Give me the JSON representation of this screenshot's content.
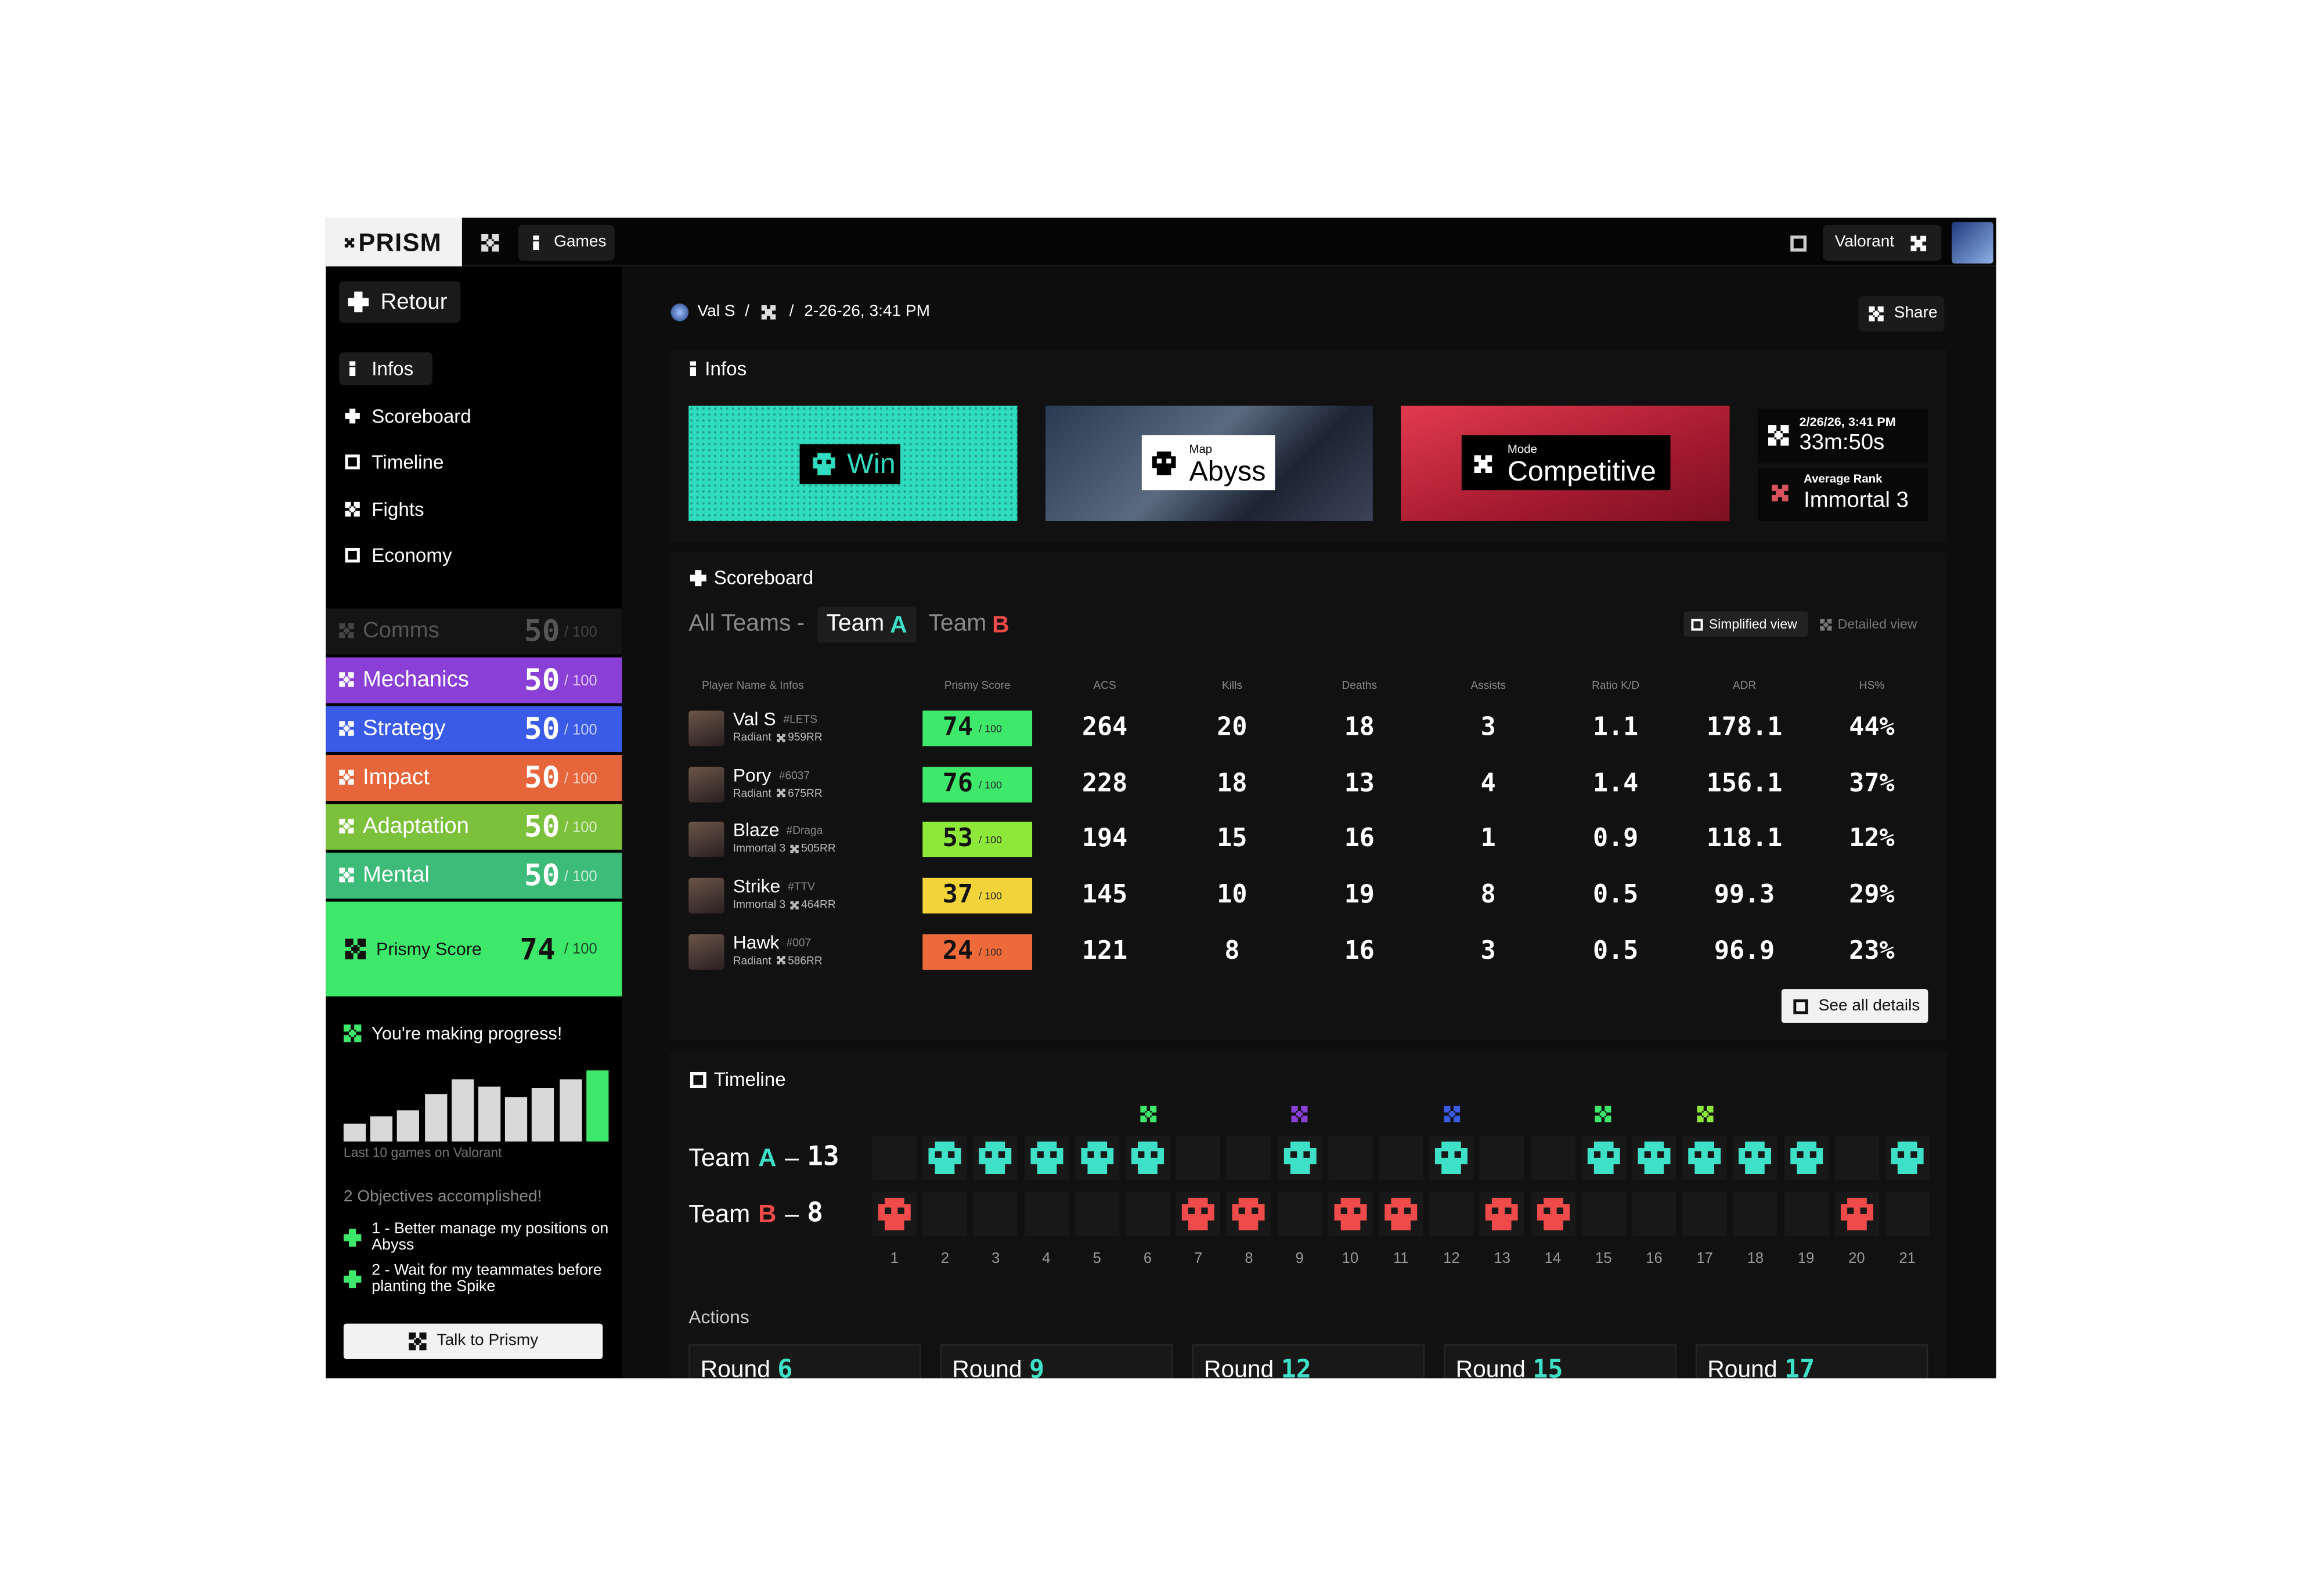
{
  "header": {
    "logo": "PRISM",
    "games": "Games",
    "game": "Valorant"
  },
  "sidebar": {
    "back": "Retour",
    "nav": [
      "Infos",
      "Scoreboard",
      "Timeline",
      "Fights",
      "Economy"
    ],
    "max": "/ 100",
    "skills": [
      {
        "name": "Comms",
        "score": 50,
        "color": "#141414"
      },
      {
        "name": "Mechanics",
        "score": 50,
        "color": "#8a3fd6"
      },
      {
        "name": "Strategy",
        "score": 50,
        "color": "#3a5ae8"
      },
      {
        "name": "Impact",
        "score": 50,
        "color": "#e6653a"
      },
      {
        "name": "Adaptation",
        "score": 50,
        "color": "#7cc13c"
      },
      {
        "name": "Mental",
        "score": 50,
        "color": "#3dbb78"
      }
    ],
    "prismy": {
      "label": "Prismy Score",
      "score": 74,
      "color": "#3ee86a"
    },
    "progress": {
      "title": "You're making progress!",
      "values": [
        12,
        17,
        21,
        32,
        42,
        37,
        30,
        36,
        42,
        48
      ],
      "caption": "Last 10 games on Valorant"
    },
    "objectives": {
      "title": "2 Objectives accomplished!",
      "items": [
        "1 - Better manage my positions on Abyss",
        "2 - Wait for my teammates before planting the Spike"
      ]
    },
    "talk": "Talk to Prismy"
  },
  "breadcrumb": {
    "player": "Val S",
    "separator": "/",
    "date": "2-26-26, 3:41 PM",
    "share": "Share"
  },
  "infos": {
    "title": "Infos",
    "result": "Win",
    "map_label": "Map",
    "map": "Abyss",
    "mode_label": "Mode",
    "mode": "Competitive",
    "datetime": "2/26/26, 3:41 PM",
    "duration": "33m:50s",
    "rank_label": "Average Rank",
    "rank": "Immortal 3"
  },
  "scoreboard": {
    "title": "Scoreboard",
    "tabs": [
      {
        "label": "All Teams"
      },
      {
        "label": "Team",
        "letter": "A",
        "color": "#3fe0c8"
      },
      {
        "label": "Team",
        "letter": "B",
        "color": "#ef4b4b"
      }
    ],
    "separator": "-",
    "views": [
      "Simplified view",
      "Detailed view"
    ],
    "columns": [
      "Player Name & Infos",
      "Prismy Score",
      "ACS",
      "Kills",
      "Deaths",
      "Assists",
      "Ratio K/D",
      "ADR",
      "HS%"
    ],
    "max": "/ 100",
    "rows": [
      {
        "name": "Val S",
        "tag": "#LETS",
        "rank": "Radiant",
        "rr": "959RR",
        "score": 74,
        "color": "#3ee86a",
        "acs": 264,
        "kills": 20,
        "deaths": 18,
        "assists": 3,
        "kd": 1.1,
        "adr": 178.1,
        "hs": "44%"
      },
      {
        "name": "Pory",
        "tag": "#6037",
        "rank": "Radiant",
        "rr": "675RR",
        "score": 76,
        "color": "#3ee86a",
        "acs": 228,
        "kills": 18,
        "deaths": 13,
        "assists": 4,
        "kd": 1.4,
        "adr": 156.1,
        "hs": "37%"
      },
      {
        "name": "Blaze",
        "tag": "#Draga",
        "rank": "Immortal 3",
        "rr": "505RR",
        "score": 53,
        "color": "#8ee83a",
        "acs": 194,
        "kills": 15,
        "deaths": 16,
        "assists": 1,
        "kd": 0.9,
        "adr": 118.1,
        "hs": "12%"
      },
      {
        "name": "Strike",
        "tag": "#TTV",
        "rank": "Immortal 3",
        "rr": "464RR",
        "score": 37,
        "color": "#f2d43a",
        "acs": 145,
        "kills": 10,
        "deaths": 19,
        "assists": 8,
        "kd": 0.5,
        "adr": 99.3,
        "hs": "29%"
      },
      {
        "name": "Hawk",
        "tag": "#007",
        "rank": "Radiant",
        "rr": "586RR",
        "score": 24,
        "color": "#ef6a3a",
        "acs": 121,
        "kills": 8,
        "deaths": 16,
        "assists": 3,
        "kd": 0.5,
        "adr": 96.9,
        "hs": "23%"
      }
    ],
    "details": "See all details"
  },
  "timeline": {
    "title": "Timeline",
    "separator": "–",
    "teams": [
      {
        "label": "Team",
        "letter": "A",
        "score": 13,
        "color": "#3fe0c8"
      },
      {
        "label": "Team",
        "letter": "B",
        "score": 8,
        "color": "#ef4b4b"
      }
    ],
    "rounds": [
      1,
      2,
      3,
      4,
      5,
      6,
      7,
      8,
      9,
      10,
      11,
      12,
      13,
      14,
      15,
      16,
      17,
      18,
      19,
      20,
      21
    ],
    "winners": [
      "B",
      "A",
      "A",
      "A",
      "A",
      "A",
      "B",
      "B",
      "A",
      "B",
      "B",
      "A",
      "B",
      "B",
      "A",
      "A",
      "A",
      "A",
      "A",
      "B",
      "A"
    ],
    "actions_title": "Actions",
    "actions": [
      {
        "label": "Round",
        "round": 6
      },
      {
        "label": "Round",
        "round": 9
      },
      {
        "label": "Round",
        "round": 12
      },
      {
        "label": "Round",
        "round": 15
      },
      {
        "label": "Round",
        "round": 17
      }
    ]
  }
}
